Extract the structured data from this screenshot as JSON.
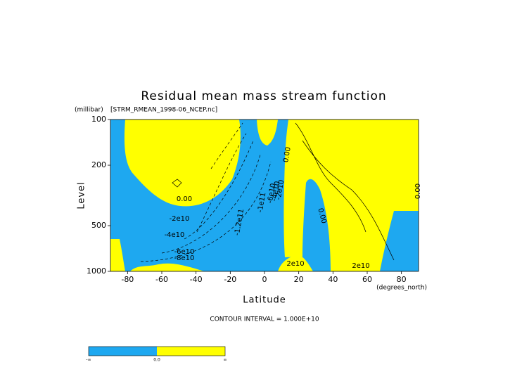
{
  "chart_data": {
    "type": "contour",
    "title": "Residual mean mass stream function",
    "subtitle": "[STRM_RMEAN_1998-06_NCEP.nc]",
    "x_label": "Latitude",
    "x_units": "(degrees_north)",
    "y_label": "Level",
    "y_units": "(millibar)",
    "xlim": [
      -90,
      90
    ],
    "xticks": [
      -80,
      -60,
      -40,
      -20,
      0,
      20,
      40,
      60,
      80
    ],
    "ylim": [
      1000,
      100
    ],
    "y_scale": "log",
    "yticks": [
      100,
      200,
      500,
      1000
    ],
    "contour_labels": [
      "0.00",
      "-2e10",
      "-4e10",
      "-6e10",
      "-8e10",
      "-1.2e11",
      "-1e11",
      "-6e10",
      "-4e10",
      "-2e10",
      "0.00",
      "0.00",
      "2e10",
      "2e10",
      "0.00"
    ],
    "note": "CONTOUR INTERVAL = 1.000E+10",
    "colorbar": {
      "labels": [
        "-∞",
        "0.0",
        "∞"
      ],
      "colors": [
        "#1ea8f0",
        "#ffff00"
      ]
    }
  }
}
